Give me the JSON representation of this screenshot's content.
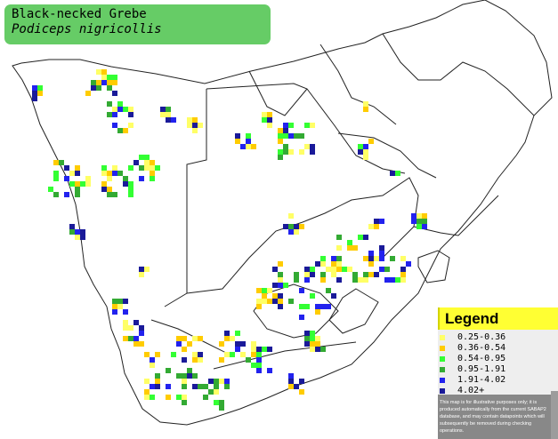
{
  "title": {
    "common_name": "Black-necked Grebe",
    "scientific_name": "Podiceps nigricollis"
  },
  "legend": {
    "heading": "Legend",
    "items": [
      {
        "label": "0.25-0.36",
        "color": "#ffff66"
      },
      {
        "label": "0.36-0.54",
        "color": "#ffcc00"
      },
      {
        "label": "0.54-0.95",
        "color": "#33ff33"
      },
      {
        "label": "0.95-1.91",
        "color": "#33aa33"
      },
      {
        "label": "1.91-4.02",
        "color": "#2222ee"
      },
      {
        "label": "4.02+",
        "color": "#1a1a99"
      }
    ],
    "disclaimer": "This map is for illustrative purposes only; it is produced automatically from the current SABAP2 database, and may contain datapoints which will subsequently be removed during checking operations."
  }
}
